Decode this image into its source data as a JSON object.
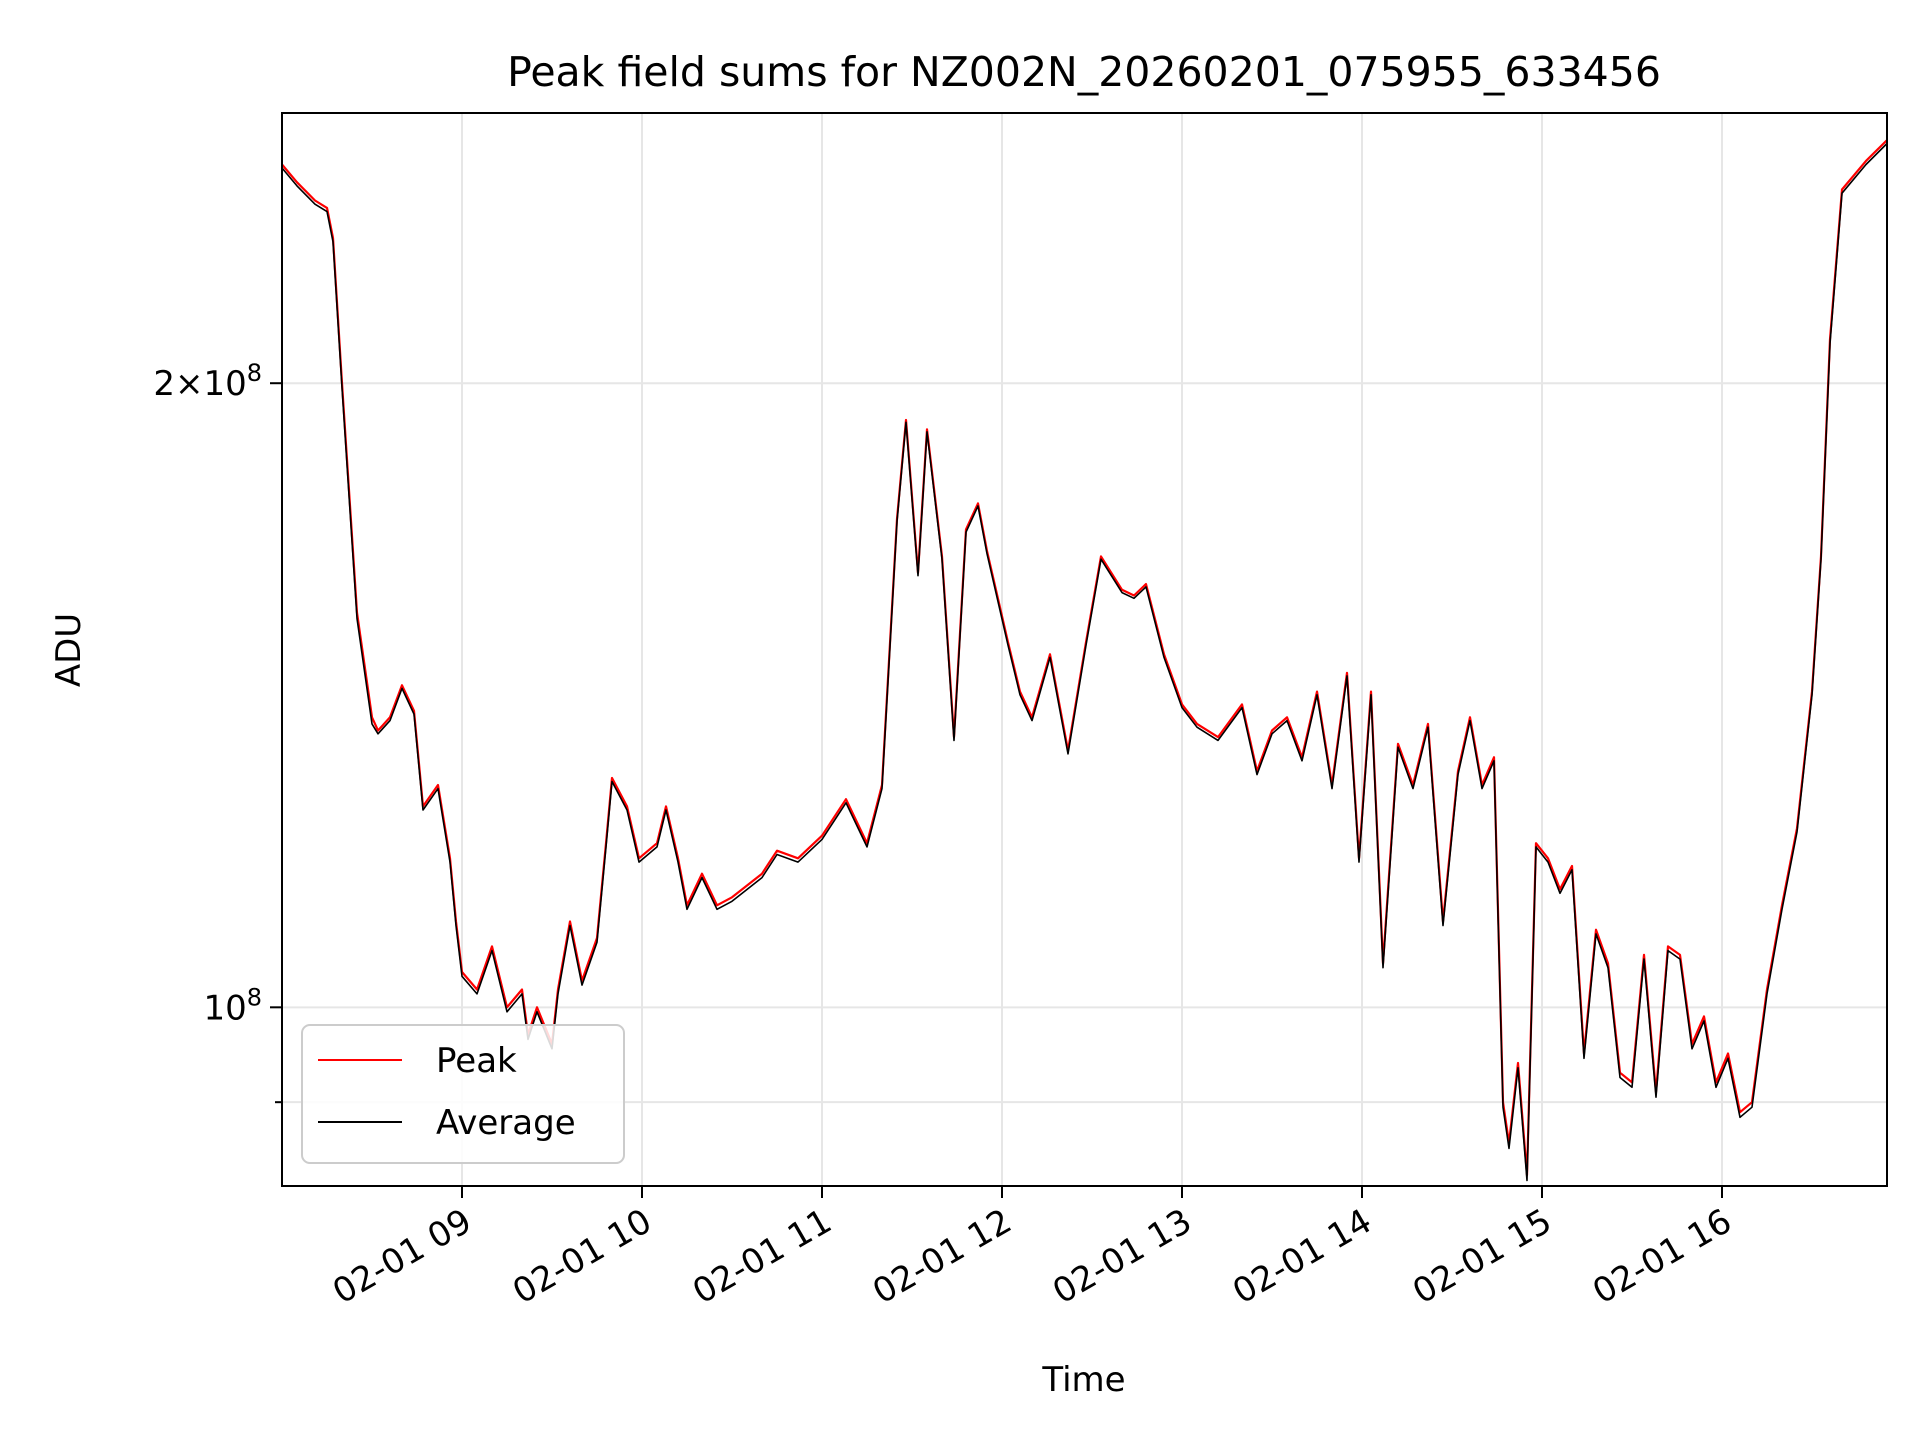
{
  "chart_data": {
    "type": "line",
    "title": "Peak field sums for NZ002N_20260201_075955_633456",
    "xlabel": "Time",
    "ylabel": "ADU",
    "yscale": "log",
    "xlim": [
      "02-01 08:00",
      "02-01 16:55"
    ],
    "ylim": [
      82000000.0,
      270000000.0
    ],
    "x_tick_labels": [
      "02-01 09",
      "02-01 10",
      "02-01 11",
      "02-01 12",
      "02-01 13",
      "02-01 14",
      "02-01 15",
      "02-01 16"
    ],
    "y_ticks": [
      {
        "value": 200000000.0,
        "mantissa": "2",
        "exponent": "8"
      },
      {
        "value": 100000000.0,
        "mantissa": "",
        "exponent": "8"
      }
    ],
    "y_minor_ticks": [
      90000000.0
    ],
    "grid": true,
    "legend": {
      "position": "lower-left",
      "entries": [
        "Peak",
        "Average"
      ]
    },
    "series": [
      {
        "name": "Peak",
        "color": "#ff0000",
        "x": [
          "02-01 08:00",
          "02-01 08:05",
          "02-01 08:11",
          "02-01 08:15",
          "02-01 08:17",
          "02-01 08:20",
          "02-01 08:25",
          "02-01 08:30",
          "02-01 08:32",
          "02-01 08:36",
          "02-01 08:40",
          "02-01 08:44",
          "02-01 08:47",
          "02-01 08:52",
          "02-01 08:56",
          "02-01 08:58",
          "02-01 09:00",
          "02-01 09:05",
          "02-01 09:10",
          "02-01 09:15",
          "02-01 09:20",
          "02-01 09:22",
          "02-01 09:25",
          "02-01 09:30",
          "02-01 09:32",
          "02-01 09:36",
          "02-01 09:40",
          "02-01 09:45",
          "02-01 09:48",
          "02-01 09:50",
          "02-01 09:55",
          "02-01 09:59",
          "02-01 10:05",
          "02-01 10:08",
          "02-01 10:12",
          "02-01 10:15",
          "02-01 10:20",
          "02-01 10:25",
          "02-01 10:30",
          "02-01 10:40",
          "02-01 10:45",
          "02-01 10:52",
          "02-01 11:00",
          "02-01 11:08",
          "02-01 11:15",
          "02-01 11:20",
          "02-01 11:25",
          "02-01 11:28",
          "02-01 11:32",
          "02-01 11:35",
          "02-01 11:40",
          "02-01 11:44",
          "02-01 11:48",
          "02-01 11:52",
          "02-01 11:55",
          "02-01 12:02",
          "02-01 12:06",
          "02-01 12:10",
          "02-01 12:16",
          "02-01 12:22",
          "02-01 12:28",
          "02-01 12:33",
          "02-01 12:40",
          "02-01 12:44",
          "02-01 12:48",
          "02-01 12:54",
          "02-01 13:00",
          "02-01 13:05",
          "02-01 13:12",
          "02-01 13:20",
          "02-01 13:25",
          "02-01 13:30",
          "02-01 13:35",
          "02-01 13:40",
          "02-01 13:45",
          "02-01 13:50",
          "02-01 13:55",
          "02-01 13:59",
          "02-01 14:03",
          "02-01 14:07",
          "02-01 14:12",
          "02-01 14:17",
          "02-01 14:22",
          "02-01 14:27",
          "02-01 14:32",
          "02-01 14:36",
          "02-01 14:40",
          "02-01 14:44",
          "02-01 14:47",
          "02-01 14:49",
          "02-01 14:52",
          "02-01 14:55",
          "02-01 14:58",
          "02-01 15:02",
          "02-01 15:06",
          "02-01 15:10",
          "02-01 15:14",
          "02-01 15:18",
          "02-01 15:22",
          "02-01 15:26",
          "02-01 15:30",
          "02-01 15:34",
          "02-01 15:38",
          "02-01 15:42",
          "02-01 15:46",
          "02-01 15:50",
          "02-01 15:54",
          "02-01 15:58",
          "02-01 16:02",
          "02-01 16:06",
          "02-01 16:10",
          "02-01 16:15",
          "02-01 16:20",
          "02-01 16:25",
          "02-01 16:30",
          "02-01 16:33",
          "02-01 16:36",
          "02-01 16:40",
          "02-01 16:48",
          "02-01 16:55"
        ],
        "y": [
          255000000.0,
          250000000.0,
          245000000.0,
          243000000.0,
          235000000.0,
          200000000.0,
          155000000.0,
          138000000.0,
          136000000.0,
          138000000.0,
          143000000.0,
          139000000.0,
          125000000.0,
          128000000.0,
          118000000.0,
          110000000.0,
          104000000.0,
          102000000.0,
          107000000.0,
          100000000.0,
          102000000.0,
          97000000.0,
          100000000.0,
          96000000.0,
          102000000.0,
          110000000.0,
          103000000.0,
          108000000.0,
          120000000.0,
          129000000.0,
          125000000.0,
          118000000.0,
          120000000.0,
          125000000.0,
          118000000.0,
          112000000.0,
          116000000.0,
          112000000.0,
          113000000.0,
          116000000.0,
          119000000.0,
          118000000.0,
          121000000.0,
          126000000.0,
          120000000.0,
          128000000.0,
          172000000.0,
          192000000.0,
          162000000.0,
          190000000.0,
          165000000.0,
          135000000.0,
          170000000.0,
          175000000.0,
          166000000.0,
          150000000.0,
          142000000.0,
          138000000.0,
          148000000.0,
          133000000.0,
          150000000.0,
          165000000.0,
          159000000.0,
          158000000.0,
          160000000.0,
          148000000.0,
          140000000.0,
          137000000.0,
          135000000.0,
          140000000.0,
          130000000.0,
          136000000.0,
          138000000.0,
          132000000.0,
          142000000.0,
          128000000.0,
          145000000.0,
          118000000.0,
          142000000.0,
          105000000.0,
          134000000.0,
          128000000.0,
          137000000.0,
          110000000.0,
          130000000.0,
          138000000.0,
          128000000.0,
          132000000.0,
          90000000.0,
          86000000.0,
          94000000.0,
          83000000.0,
          120000000.0,
          118000000.0,
          114000000.0,
          117000000.0,
          95000000.0,
          109000000.0,
          105000000.0,
          93000000.0,
          92000000.0,
          106000000.0,
          91000000.0,
          107000000.0,
          106000000.0,
          96000000.0,
          99000000.0,
          92000000.0,
          95000000.0,
          89000000.0,
          90000000.0,
          102000000.0,
          112000000.0,
          122000000.0,
          142000000.0,
          165000000.0,
          210000000.0,
          248000000.0,
          256000000.0,
          262000000.0
        ]
      },
      {
        "name": "Average",
        "color": "#000000",
        "x": [
          "02-01 08:00",
          "02-01 08:05",
          "02-01 08:11",
          "02-01 08:15",
          "02-01 08:17",
          "02-01 08:20",
          "02-01 08:25",
          "02-01 08:30",
          "02-01 08:32",
          "02-01 08:36",
          "02-01 08:40",
          "02-01 08:44",
          "02-01 08:47",
          "02-01 08:52",
          "02-01 08:56",
          "02-01 08:58",
          "02-01 09:00",
          "02-01 09:05",
          "02-01 09:10",
          "02-01 09:15",
          "02-01 09:20",
          "02-01 09:22",
          "02-01 09:25",
          "02-01 09:30",
          "02-01 09:32",
          "02-01 09:36",
          "02-01 09:40",
          "02-01 09:45",
          "02-01 09:48",
          "02-01 09:50",
          "02-01 09:55",
          "02-01 09:59",
          "02-01 10:05",
          "02-01 10:08",
          "02-01 10:12",
          "02-01 10:15",
          "02-01 10:20",
          "02-01 10:25",
          "02-01 10:30",
          "02-01 10:40",
          "02-01 10:45",
          "02-01 10:52",
          "02-01 11:00",
          "02-01 11:08",
          "02-01 11:15",
          "02-01 11:20",
          "02-01 11:25",
          "02-01 11:28",
          "02-01 11:32",
          "02-01 11:35",
          "02-01 11:40",
          "02-01 11:44",
          "02-01 11:48",
          "02-01 11:52",
          "02-01 11:55",
          "02-01 12:02",
          "02-01 12:06",
          "02-01 12:10",
          "02-01 12:16",
          "02-01 12:22",
          "02-01 12:28",
          "02-01 12:33",
          "02-01 12:40",
          "02-01 12:44",
          "02-01 12:48",
          "02-01 12:54",
          "02-01 13:00",
          "02-01 13:05",
          "02-01 13:12",
          "02-01 13:20",
          "02-01 13:25",
          "02-01 13:30",
          "02-01 13:35",
          "02-01 13:40",
          "02-01 13:45",
          "02-01 13:50",
          "02-01 13:55",
          "02-01 13:59",
          "02-01 14:03",
          "02-01 14:07",
          "02-01 14:12",
          "02-01 14:17",
          "02-01 14:22",
          "02-01 14:27",
          "02-01 14:32",
          "02-01 14:36",
          "02-01 14:40",
          "02-01 14:44",
          "02-01 14:47",
          "02-01 14:49",
          "02-01 14:52",
          "02-01 14:55",
          "02-01 14:58",
          "02-01 15:02",
          "02-01 15:06",
          "02-01 15:10",
          "02-01 15:14",
          "02-01 15:18",
          "02-01 15:22",
          "02-01 15:26",
          "02-01 15:30",
          "02-01 15:34",
          "02-01 15:38",
          "02-01 15:42",
          "02-01 15:46",
          "02-01 15:50",
          "02-01 15:54",
          "02-01 15:58",
          "02-01 16:02",
          "02-01 16:06",
          "02-01 16:10",
          "02-01 16:15",
          "02-01 16:20",
          "02-01 16:25",
          "02-01 16:30",
          "02-01 16:33",
          "02-01 16:36",
          "02-01 16:40",
          "02-01 16:48",
          "02-01 16:55"
        ],
        "y": [
          254000000.0,
          249000000.0,
          244000000.0,
          242000000.0,
          234000000.0,
          199000000.0,
          154000000.0,
          137000000.0,
          135500000.0,
          137500000.0,
          142500000.0,
          138500000.0,
          124500000.0,
          127500000.0,
          117500000.0,
          109500000.0,
          103500000.0,
          101500000.0,
          106500000.0,
          99500000.0,
          101500000.0,
          96500000.0,
          99500000.0,
          95500000.0,
          101500000.0,
          109500000.0,
          102500000.0,
          107500000.0,
          119500000.0,
          128500000.0,
          124500000.0,
          117500000.0,
          119500000.0,
          124500000.0,
          117500000.0,
          111500000.0,
          115500000.0,
          111500000.0,
          112500000.0,
          115500000.0,
          118500000.0,
          117500000.0,
          120500000.0,
          125500000.0,
          119500000.0,
          127500000.0,
          171500000.0,
          191500000.0,
          161500000.0,
          189500000.0,
          164500000.0,
          134500000.0,
          169500000.0,
          174500000.0,
          165500000.0,
          149500000.0,
          141500000.0,
          137500000.0,
          147500000.0,
          132500000.0,
          149500000.0,
          164500000.0,
          158500000.0,
          157500000.0,
          159500000.0,
          147500000.0,
          139500000.0,
          136500000.0,
          134500000.0,
          139500000.0,
          129500000.0,
          135500000.0,
          137500000.0,
          131500000.0,
          141500000.0,
          127500000.0,
          144500000.0,
          117500000.0,
          141500000.0,
          104500000.0,
          133500000.0,
          127500000.0,
          136500000.0,
          109500000.0,
          129500000.0,
          137500000.0,
          127500000.0,
          131500000.0,
          89500000.0,
          85500000.0,
          93500000.0,
          82500000.0,
          119500000.0,
          117500000.0,
          113500000.0,
          116500000.0,
          94500000.0,
          108500000.0,
          104500000.0,
          92500000.0,
          91500000.0,
          105500000.0,
          90500000.0,
          106500000.0,
          105500000.0,
          95500000.0,
          98500000.0,
          91500000.0,
          94500000.0,
          88500000.0,
          89500000.0,
          101500000.0,
          111500000.0,
          121500000.0,
          141500000.0,
          164500000.0,
          209000000.0,
          247000000.0,
          255000000.0,
          261000000.0
        ]
      }
    ]
  }
}
